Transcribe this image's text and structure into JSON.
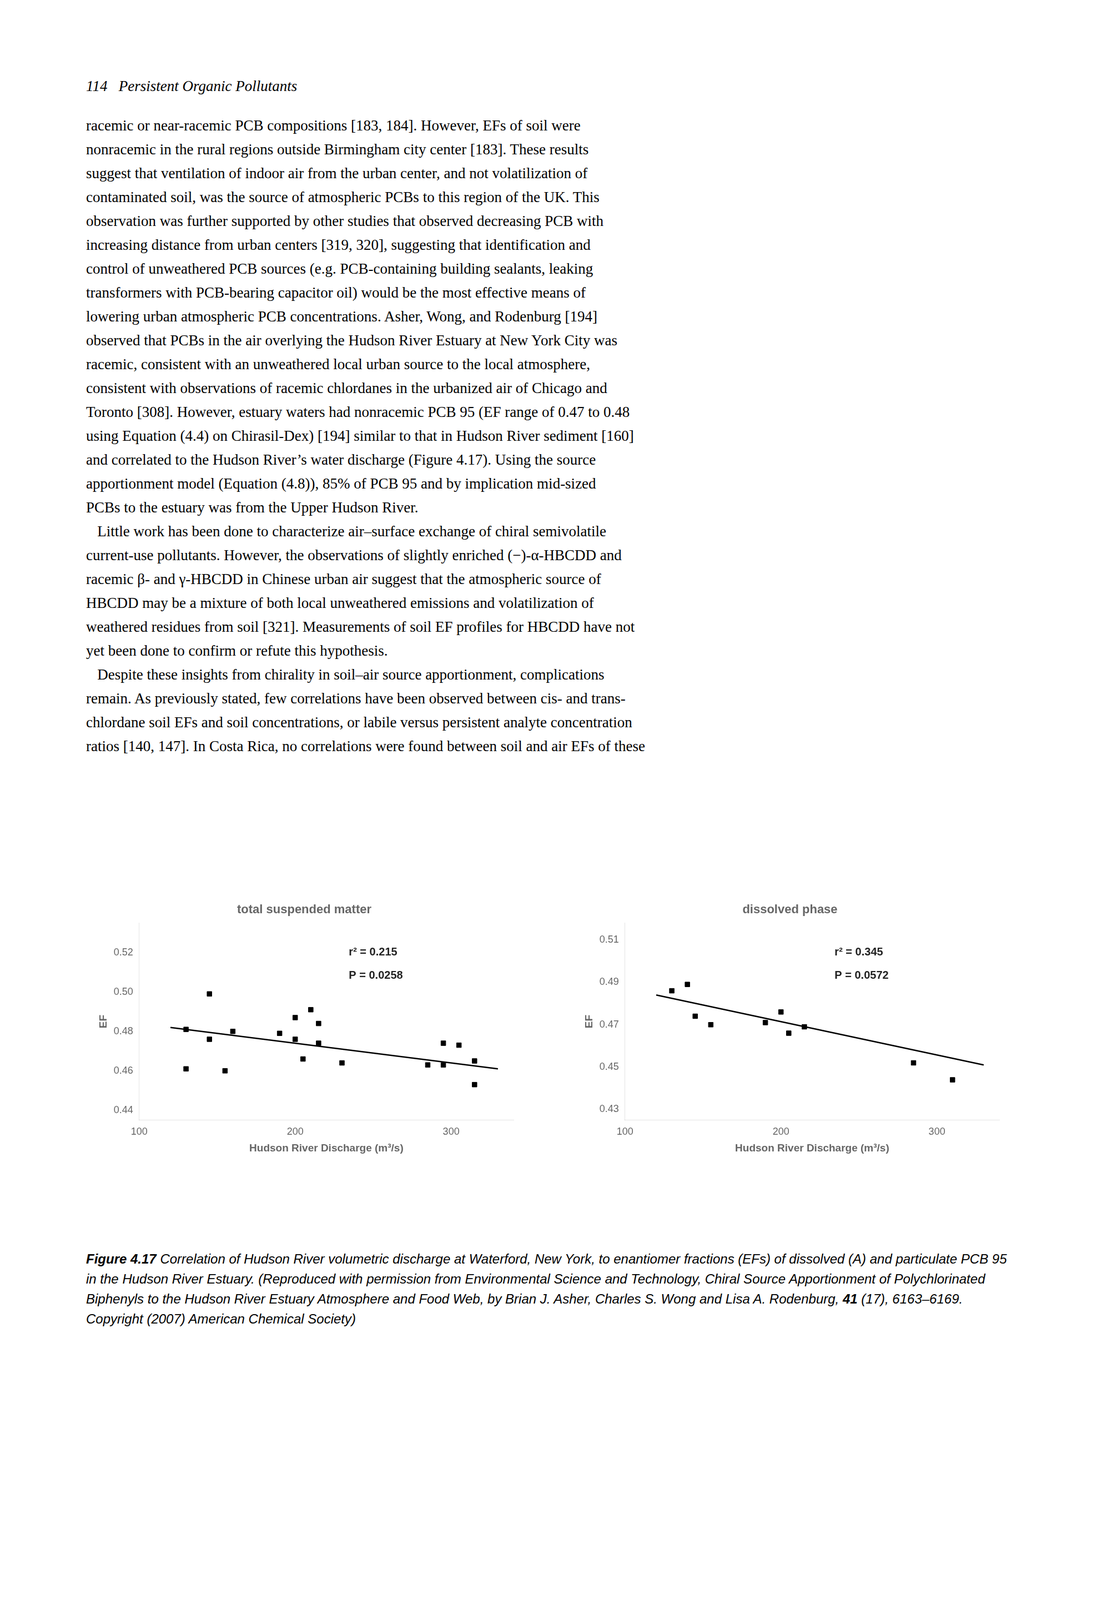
{
  "page_header": "114   Persistent Organic Pollutants",
  "body_lines": [
    "racemic or near-racemic PCB compositions [183, 184]. However, EFs of soil were",
    "nonracemic in the rural regions outside Birmingham city center [183]. These results",
    "suggest that ventilation of indoor air from the urban center, and not volatilization of",
    "contaminated soil, was the source of atmospheric PCBs to this region of the UK. This",
    "observation was further supported by other studies that observed decreasing PCB with",
    "increasing distance from urban centers [319, 320], suggesting that identification and",
    "control of unweathered PCB sources (e.g. PCB-containing building sealants, leaking",
    "transformers with PCB-bearing capacitor oil) would be the most effective means of",
    "lowering urban atmospheric PCB concentrations. Asher, Wong, and Rodenburg [194]",
    "observed that PCBs in the air overlying the Hudson River Estuary at New York City was",
    "racemic, consistent with an unweathered local urban source to the local atmosphere,",
    "consistent with observations of racemic chlordanes in the urbanized air of Chicago and",
    "Toronto [308]. However, estuary waters had nonracemic PCB 95 (EF range of 0.47 to 0.48",
    "using Equation (4.4) on Chirasil-Dex) [194] similar to that in Hudson River sediment [160]",
    "and correlated to the Hudson River’s water discharge (Figure 4.17). Using the source",
    "apportionment model (Equation (4.8)), 85% of PCB 95 and by implication mid-sized",
    "PCBs to the estuary was from the Upper Hudson River.",
    "   Little work has been done to characterize air–surface exchange of chiral semivolatile",
    "current-use pollutants. However, the observations of slightly enriched (−)-α-HBCDD and",
    "racemic β- and γ-HBCDD in Chinese urban air suggest that the atmospheric source of",
    "HBCDD may be a mixture of both local unweathered emissions and volatilization of",
    "weathered residues from soil [321]. Measurements of soil EF profiles for HBCDD have not",
    "yet been done to confirm or refute this hypothesis.",
    "   Despite these insights from chirality in soil–air source apportionment, complications",
    "remain. As previously stated, few correlations have been observed between cis- and trans-",
    "chlordane soil EFs and soil concentrations, or labile versus persistent analyte concentration",
    "ratios [140, 147]. In Costa Rica, no correlations were found between soil and air EFs of these"
  ],
  "caption": [
    "Figure 4.17",
    "Correlation of Hudson River volumetric discharge at Waterford, New York, to enantiomer fractions (EFs) of dissolved (A) and particulate PCB 95 in the Hudson River Estuary. (Reproduced with permission from Environmental Science and Technology, Chiral Source Apportionment of Polychlorinated Biphenyls to the Hudson River Estuary Atmosphere and Food Web, by Brian J. Asher, Charles S. Wong and Lisa A. Rodenburg,",
    "41",
    "(17), 6163–6169. Copyright (2007) American Chemical Society)"
  ],
  "chart_data": [
    {
      "type": "scatter",
      "title": "total suspended matter",
      "x_label": "Hudson River Discharge (m³/s)",
      "y_label": "EF",
      "xlim": [
        100,
        340
      ],
      "ylim": [
        0.435,
        0.535
      ],
      "xticks": [
        100,
        200,
        300
      ],
      "yticks": [
        0.44,
        0.46,
        0.48,
        {
          "value": 0.5,
          "label": "0.50"
        },
        0.52
      ],
      "grid": false,
      "annotations": [
        "r² = 0.215",
        "P = 0.0258"
      ],
      "series": [
        {
          "type": "scatter",
          "color": "#000000",
          "marker": "square",
          "x": [
            130,
            130,
            145,
            145,
            155,
            160,
            190,
            200,
            200,
            205,
            210,
            215,
            215,
            230,
            285,
            295,
            295,
            305,
            315,
            315
          ],
          "values": [
            0.481,
            0.461,
            0.499,
            0.476,
            0.46,
            0.48,
            0.479,
            0.487,
            0.476,
            0.466,
            0.491,
            0.484,
            0.474,
            0.464,
            0.463,
            0.474,
            0.463,
            0.473,
            0.465,
            0.453
          ]
        },
        {
          "type": "line",
          "color": "#000000",
          "line_style": "solid",
          "x": [
            120,
            330
          ],
          "values": [
            0.482,
            0.461
          ]
        }
      ]
    },
    {
      "type": "scatter",
      "title": "dissolved phase",
      "x_label": "Hudson River Discharge (m³/s)",
      "y_label": "EF",
      "xlim": [
        100,
        340
      ],
      "ylim": [
        0.425,
        0.518
      ],
      "xticks": [
        100,
        200,
        300
      ],
      "yticks": [
        0.43,
        0.45,
        0.47,
        0.49,
        0.51
      ],
      "grid": false,
      "annotations": [
        "r² = 0.345",
        "P = 0.0572"
      ],
      "series": [
        {
          "type": "scatter",
          "color": "#000000",
          "marker": "square",
          "x": [
            130,
            140,
            145,
            155,
            190,
            200,
            205,
            215,
            285,
            310
          ],
          "values": [
            0.486,
            0.489,
            0.474,
            0.47,
            0.471,
            0.476,
            0.466,
            0.469,
            0.452,
            0.444
          ]
        },
        {
          "type": "line",
          "color": "#000000",
          "line_style": "solid",
          "x": [
            120,
            330
          ],
          "values": [
            0.484,
            0.451
          ]
        }
      ]
    }
  ]
}
